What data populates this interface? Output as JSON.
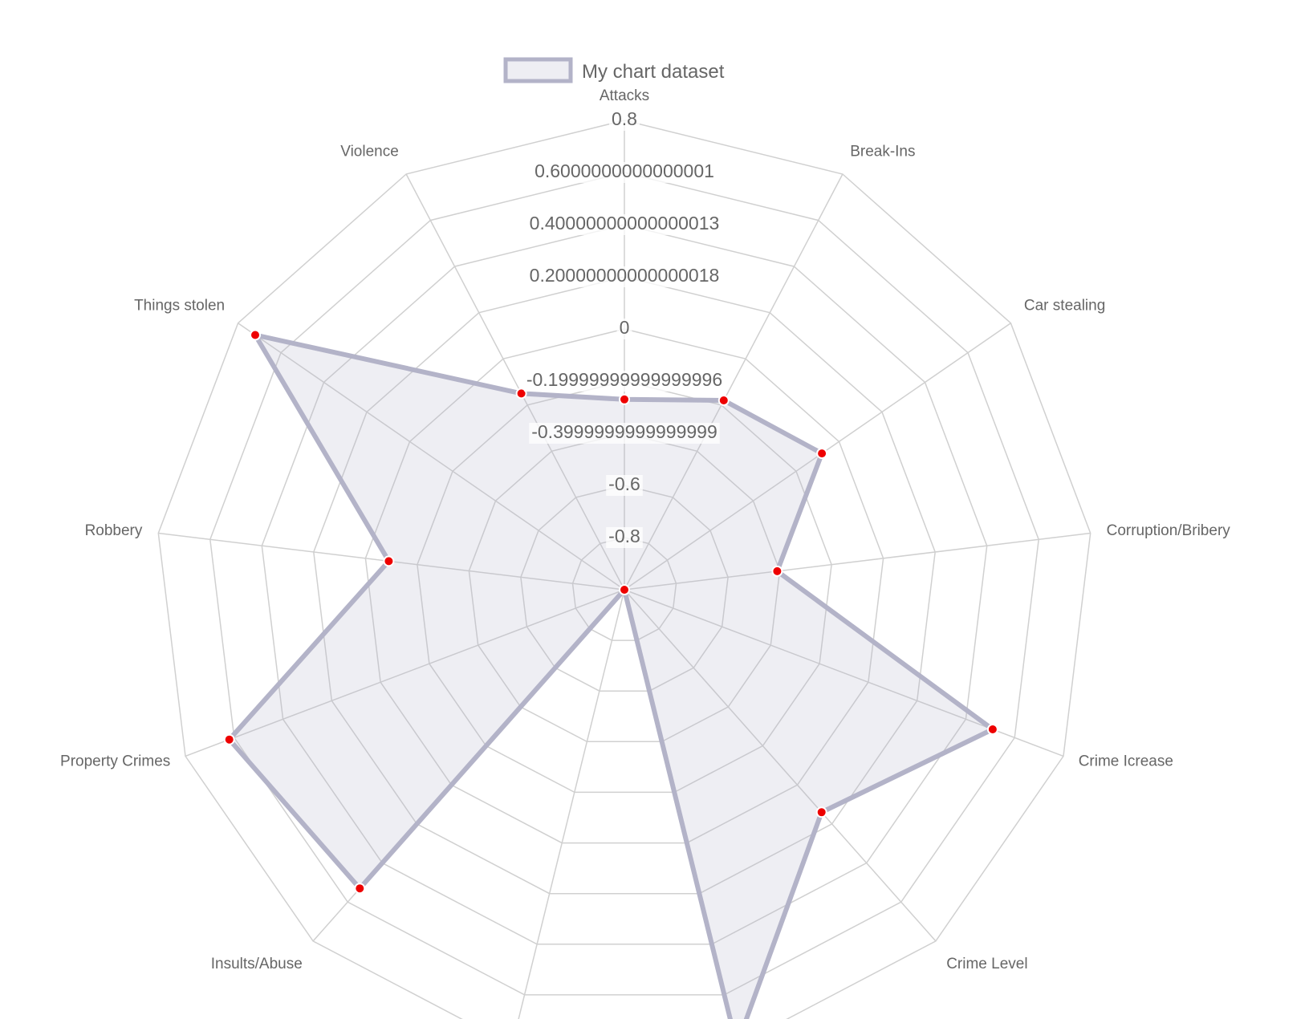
{
  "chart_data": {
    "type": "radar",
    "legend": {
      "position": "top",
      "label": "My chart dataset"
    },
    "categories": [
      "Attacks",
      "Break-Ins",
      "Car stealing",
      "Corruption/Bribery",
      "Crime Icrease",
      "Crime Level",
      "",
      "",
      "Insults/Abuse",
      "Property Crimes",
      "Robbery",
      "Things stolen",
      "Violence"
    ],
    "series": [
      {
        "name": "My chart dataset",
        "values": [
          -0.27,
          -0.18,
          -0.08,
          -0.41,
          0.51,
          0.14,
          0.8,
          -1.0,
          0.53,
          0.62,
          -0.09,
          0.72,
          -0.15
        ]
      }
    ],
    "scale": {
      "min": -1.0,
      "max": 0.8,
      "ticks": [
        "-0.8",
        "-0.6",
        "-0.3999999999999999",
        "-0.19999999999999996",
        "0",
        "0.20000000000000018",
        "0.40000000000000013",
        "0.6000000000000001",
        "0.8"
      ]
    },
    "colors": {
      "line": "#b3b3c8",
      "fill": "rgba(179,179,200,0.22)",
      "point": "#ee0000",
      "grid": "#d0d0d0",
      "text": "#666666"
    }
  }
}
